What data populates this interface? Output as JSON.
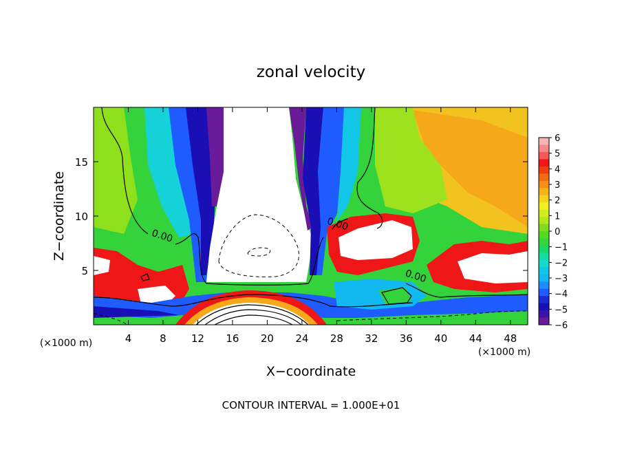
{
  "chart_data": {
    "type": "heatmap",
    "title": "zonal velocity",
    "xlabel": "X−coordinate",
    "ylabel": "Z−coordinate",
    "x_unit_label": "(×1000 m)",
    "x_unit_label_right": "(×1000 m)",
    "xlim": [
      0,
      50
    ],
    "ylim": [
      0,
      20
    ],
    "x_ticks": [
      4,
      8,
      12,
      16,
      20,
      24,
      28,
      32,
      36,
      40,
      44,
      48
    ],
    "y_ticks": [
      5,
      10,
      15
    ],
    "colorbar": {
      "min": -6,
      "max": 6,
      "labels": [
        "6",
        "5",
        "4",
        "3",
        "2",
        "1",
        "0",
        "−1",
        "−2",
        "−3",
        "−4",
        "−5",
        "−6"
      ],
      "label_values": [
        6,
        5,
        4,
        3,
        2,
        1,
        0,
        -1,
        -2,
        -3,
        -4,
        -5,
        -6
      ]
    },
    "contour_labels": [
      {
        "text": "0.00",
        "x": 7.8,
        "z": 7.9
      },
      {
        "text": "0.00",
        "x": 28.0,
        "z": 9.0
      },
      {
        "text": "0.00",
        "x": 37.0,
        "z": 4.2
      }
    ],
    "footer": "CONTOUR INTERVAL = 1.000E+01",
    "grid": false,
    "colormap": [
      "#6a1b9a",
      "#1a0fb5",
      "#1e5cff",
      "#12b8f0",
      "#12dcc8",
      "#18d86a",
      "#55d820",
      "#b4e61c",
      "#f2f01e",
      "#f7b21a",
      "#f26a12",
      "#ee1616",
      "#f47676",
      "#ffffff"
    ]
  }
}
